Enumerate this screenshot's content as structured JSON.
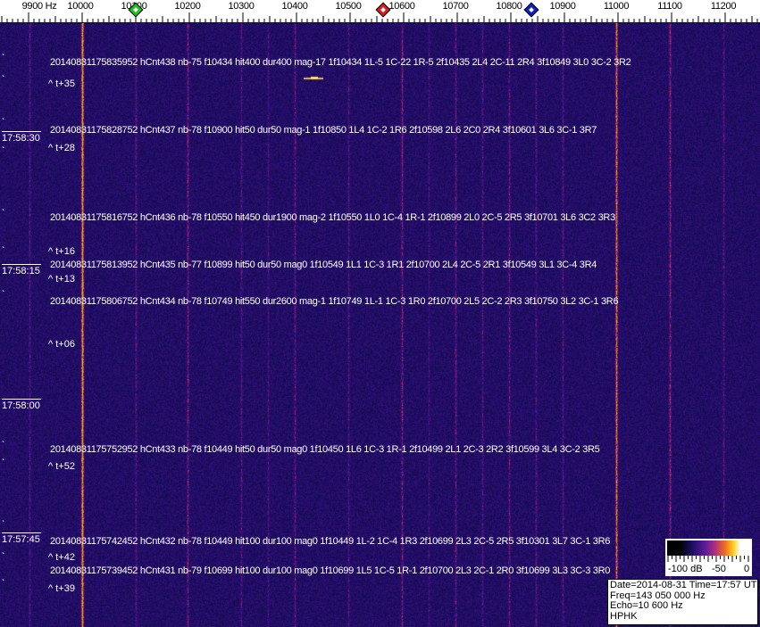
{
  "frequency_axis": {
    "unit_label": "9900 Hz",
    "labels": [
      "10000",
      "10100",
      "10200",
      "10300",
      "10400",
      "10500",
      "10600",
      "10700",
      "10800",
      "10900",
      "11000",
      "11100",
      "11200"
    ],
    "markers": [
      {
        "name": "green",
        "color": "#22c020",
        "freq_hz": 10100
      },
      {
        "name": "red",
        "color": "#d02020",
        "freq_hz": 10563
      },
      {
        "name": "blue",
        "color": "#1020c0",
        "freq_hz": 10838
      }
    ]
  },
  "detections": [
    {
      "text": "20140831175835952 hCnt438 nb-75 f10434 hit400 dur400 mag-17 1f10434 1L-5 1C-22 1R-5 2f10435 2L4 2C-11 2R4 3f10849 3L0 3C-2 3R2",
      "tag": "^ t+35"
    },
    {
      "text": "20140831175828752 hCnt437 nb-78 f10900 hit50 dur50 mag-1 1f10850 1L4 1C-2 1R6 2f10598 2L6 2C0 2R4 3f10601 3L6 3C-1 3R7",
      "tag": "^ t+28"
    },
    {
      "text": "20140831175816752 hCnt436 nb-78 f10550 hit450 dur1900 mag-2 1f10550 1L0 1C-4 1R-1 2f10899 2L0 2C-5 2R5 3f10701 3L6 3C2 3R3",
      "tag": "^ t+16"
    },
    {
      "text": "20140831175813952 hCnt435 nb-77 f10899 hit50 dur50 mag0 1f10549 1L1 1C-3 1R1 2f10700 2L4 2C-5 2R1 3f10549 3L1 3C-4 3R4",
      "tag": "^ t+13"
    },
    {
      "text": "20140831175806752 hCnt434 nb-78 f10749 hit550 dur2600 mag-1 1f10749 1L-1 1C-3 1R0 2f10700 2L5 2C-2 2R3 3f10750 3L2 3C-1 3R6",
      "tag": "^ t+06"
    },
    {
      "text": "20140831175752952 hCnt433 nb-78 f10449 hit50 dur50 mag0 1f10450 1L6 1C-3 1R-1 2f10499 2L1 2C-3 2R2 3f10599 3L4 3C-2 3R5",
      "tag": "^ t+52"
    },
    {
      "text": "20140831175742452 hCnt432 nb-78 f10449 hit100 dur100 mag0 1f10449 1L-2 1C-4 1R3 2f10699 2L3 2C-5 2R5 3f10301 3L7 3C-1 3R6",
      "tag": "^ t+42"
    },
    {
      "text": "20140831175739452 hCnt431 nb-79 f10699 hit100 dur100 mag0 1f10699 1L5 1C-5 1R-1 2f10700 2L3 2C-1 2R0 3f10699 3L3 3C-3 3R0",
      "tag": "^ t+39"
    }
  ],
  "time_labels": [
    "17:58:30",
    "17:58:15",
    "17:58:00",
    "17:57:45"
  ],
  "color_scale": {
    "labels": [
      "-100 dB",
      "-50",
      "0"
    ]
  },
  "info": {
    "date_time": "Date=2014-08-31 Time=17:57 UTC",
    "freq": "Freq=143 050 000 Hz",
    "echo": "Echo=10 600 Hz",
    "station": "HPHK"
  }
}
